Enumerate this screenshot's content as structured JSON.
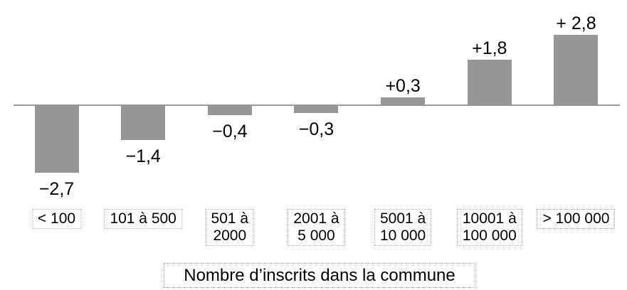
{
  "chart_data": {
    "type": "bar",
    "title": "",
    "xlabel": "Nombre d’inscrits dans la commune",
    "ylabel": "",
    "categories": [
      "< 100",
      "101 à 500",
      "501 à 2000",
      "2001 à 5 000",
      "5001 à 10 000",
      "10001 à 100 000",
      "> 100 000"
    ],
    "values": [
      -2.7,
      -1.4,
      -0.4,
      -0.3,
      0.3,
      1.8,
      2.8
    ],
    "value_labels": [
      "−2,7",
      "−1,4",
      "−0,4",
      "−0,3",
      "+0,3",
      "+1,8",
      "+ 2,8"
    ],
    "category_label_lines": [
      [
        "< 100"
      ],
      [
        "101 à 500"
      ],
      [
        "501 à",
        "2000"
      ],
      [
        "2001 à",
        "5 000"
      ],
      [
        "5001 à",
        "10 000"
      ],
      [
        "10001 à",
        "100 000"
      ],
      [
        "> 100 000"
      ]
    ],
    "ylim": [
      -3,
      3
    ],
    "grid": false,
    "legend_position": "none",
    "bar_color": "#969696",
    "axis_color": "#9a9a9a",
    "label_color": "#000000"
  }
}
